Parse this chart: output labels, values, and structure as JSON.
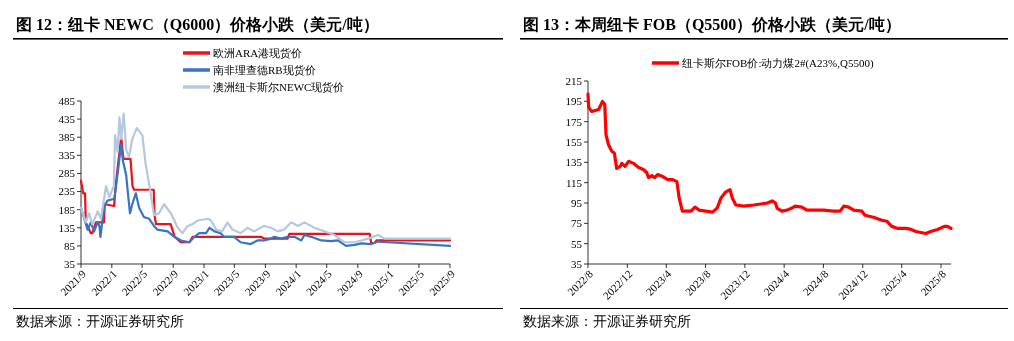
{
  "chart_data": [
    {
      "type": "line",
      "title": "图 12：纽卡 NEWC（Q6000）价格小跌（美元/吨）",
      "annotations": [
        "数据来源：开源证券研究所"
      ],
      "legend": "top",
      "grid": false,
      "marker": "none",
      "line_style": "solid",
      "xlim": [
        "2021-09-01",
        "2025-09-01"
      ],
      "xticks": [
        {
          "value": "2021-09",
          "label": "2021/9"
        },
        {
          "value": "2022-01",
          "label": "2022/1"
        },
        {
          "value": "2022-05",
          "label": "2022/5"
        },
        {
          "value": "2022-09",
          "label": "2022/9"
        },
        {
          "value": "2023-01",
          "label": "2023/1"
        },
        {
          "value": "2023-05",
          "label": "2023/5"
        },
        {
          "value": "2023-09",
          "label": "2023/9"
        },
        {
          "value": "2024-01",
          "label": "2024/1"
        },
        {
          "value": "2024-05",
          "label": "2024/5"
        },
        {
          "value": "2024-09",
          "label": "2024/9"
        },
        {
          "value": "2025-01",
          "label": "2025/1"
        },
        {
          "value": "2025-05",
          "label": "2025/5"
        },
        {
          "value": "2025-09",
          "label": "2025/9"
        }
      ],
      "ylim": [
        35,
        485
      ],
      "yticks": [
        35,
        85,
        135,
        185,
        235,
        285,
        335,
        385,
        435,
        485
      ],
      "series": [
        {
          "name": "欧洲ARA港现货价",
          "color": "#e8141b",
          "x": [
            "2021-09-01",
            "2021-09-10",
            "2021-09-17",
            "2021-09-20",
            "2021-10-10",
            "2021-10-16",
            "2021-10-30",
            "2021-12-01",
            "2021-12-04",
            "2022-01-10",
            "2022-01-16",
            "2022-02-07",
            "2022-02-16",
            "2022-03-16",
            "2022-03-24",
            "2022-03-30",
            "2022-06-16",
            "2022-06-19",
            "2022-06-25",
            "2022-08-22",
            "2022-09-07",
            "2022-10-01",
            "2022-11-04",
            "2022-11-17",
            "2023-08-14",
            "2023-08-28",
            "2023-11-28",
            "2023-12-05",
            "2024-10-18",
            "2024-10-24",
            "2024-11-07",
            "2024-11-14",
            "2025-09-01"
          ],
          "values": [
            265,
            230,
            230,
            150,
            120,
            120,
            150,
            150,
            200,
            195,
            250,
            385,
            325,
            325,
            250,
            240,
            240,
            170,
            145,
            145,
            110,
            95,
            95,
            110,
            110,
            105,
            105,
            118,
            118,
            93,
            93,
            100,
            100
          ]
        },
        {
          "name": "南非理查德RB现货价",
          "color": "#3a73c4",
          "x": [
            "2021-09-01",
            "2021-09-27",
            "2021-10-10",
            "2021-10-23",
            "2021-11-06",
            "2021-11-13",
            "2021-11-17",
            "2021-12-02",
            "2021-12-15",
            "2022-01-11",
            "2022-01-18",
            "2022-02-07",
            "2022-02-14",
            "2022-02-27",
            "2022-03-03",
            "2022-03-14",
            "2022-03-23",
            "2022-04-06",
            "2022-04-19",
            "2022-05-08",
            "2022-05-28",
            "2022-06-17",
            "2022-06-30",
            "2022-08-10",
            "2022-09-06",
            "2022-10-02",
            "2022-11-04",
            "2022-11-24",
            "2022-12-13",
            "2023-01-09",
            "2023-01-23",
            "2023-02-12",
            "2023-03-08",
            "2023-03-21",
            "2023-04-30",
            "2023-05-26",
            "2023-07-05",
            "2023-08-01",
            "2023-08-27",
            "2023-09-23",
            "2023-10-06",
            "2023-11-02",
            "2023-11-28",
            "2023-12-25",
            "2024-01-21",
            "2024-02-03",
            "2024-03-01",
            "2024-04-09",
            "2024-05-18",
            "2024-06-14",
            "2024-07-16",
            "2024-08-19",
            "2024-09-15",
            "2024-10-24",
            "2024-11-20",
            "2024-12-29",
            "2025-09-01"
          ],
          "values": [
            190,
            130,
            150,
            125,
            150,
            140,
            110,
            195,
            210,
            215,
            250,
            365,
            320,
            280,
            250,
            175,
            200,
            230,
            190,
            165,
            160,
            140,
            130,
            125,
            110,
            100,
            95,
            110,
            120,
            120,
            135,
            125,
            120,
            110,
            110,
            95,
            90,
            100,
            100,
            105,
            110,
            105,
            110,
            110,
            100,
            115,
            110,
            100,
            98,
            100,
            85,
            88,
            92,
            90,
            97,
            95,
            85
          ]
        },
        {
          "name": "澳洲纽卡斯尔NEWC现货价",
          "color": "#b4c8e0",
          "x": [
            "2021-09-01",
            "2021-09-20",
            "2021-10-03",
            "2021-10-16",
            "2021-11-06",
            "2021-11-19",
            "2021-12-09",
            "2021-12-22",
            "2022-01-09",
            "2022-01-14",
            "2022-01-24",
            "2022-01-31",
            "2022-02-07",
            "2022-02-17",
            "2022-02-27",
            "2022-03-10",
            "2022-03-23",
            "2022-04-10",
            "2022-05-02",
            "2022-05-15",
            "2022-06-04",
            "2022-06-17",
            "2022-07-07",
            "2022-07-27",
            "2022-08-23",
            "2022-09-19",
            "2022-10-08",
            "2022-10-28",
            "2022-11-17",
            "2022-12-07",
            "2023-01-16",
            "2023-01-29",
            "2023-02-18",
            "2023-03-14",
            "2023-04-04",
            "2023-04-24",
            "2023-05-26",
            "2023-06-22",
            "2023-07-18",
            "2023-08-27",
            "2023-09-23",
            "2023-10-19",
            "2023-11-15",
            "2023-12-12",
            "2024-01-08",
            "2024-02-03",
            "2024-03-13",
            "2024-04-22",
            "2024-06-01",
            "2024-07-10",
            "2024-08-19",
            "2024-09-15",
            "2024-10-11",
            "2024-11-20",
            "2024-12-16",
            "2025-09-01"
          ],
          "values": [
            190,
            150,
            175,
            145,
            180,
            160,
            250,
            220,
            250,
            390,
            345,
            440,
            380,
            450,
            350,
            330,
            380,
            410,
            390,
            310,
            230,
            170,
            175,
            200,
            175,
            135,
            120,
            140,
            145,
            155,
            160,
            155,
            130,
            125,
            150,
            130,
            120,
            135,
            125,
            140,
            135,
            125,
            130,
            150,
            140,
            150,
            135,
            125,
            115,
            95,
            95,
            100,
            105,
            115,
            105,
            105
          ]
        }
      ]
    },
    {
      "type": "line",
      "title": "图 13：本周纽卡 FOB（Q5500）价格小跌（美元/吨）",
      "annotations": [
        "数据来源：开源证券研究所"
      ],
      "legend": "top",
      "grid": false,
      "marker": "none",
      "line_style": "solid",
      "xlim": [
        "2022-08-01",
        "2025-09-01"
      ],
      "xticks": [
        {
          "value": "2022-08",
          "label": "2022/8"
        },
        {
          "value": "2022-12",
          "label": "2022/12"
        },
        {
          "value": "2023-04",
          "label": "2023/4"
        },
        {
          "value": "2023-08",
          "label": "2023/8"
        },
        {
          "value": "2023-12",
          "label": "2023/12"
        },
        {
          "value": "2024-04",
          "label": "2024/4"
        },
        {
          "value": "2024-08",
          "label": "2024/8"
        },
        {
          "value": "2024-12",
          "label": "2024/12"
        },
        {
          "value": "2025-04",
          "label": "2025/4"
        },
        {
          "value": "2025-08",
          "label": "2025/8"
        }
      ],
      "ylim": [
        35,
        215
      ],
      "yticks": [
        35,
        55,
        75,
        95,
        115,
        135,
        155,
        175,
        195,
        215
      ],
      "series": [
        {
          "name": "纽卡斯尔FOB价:动力煤2#(A23%,Q5500)",
          "color": "#ff0000",
          "x": [
            "2022-08-01",
            "2022-08-03",
            "2022-08-13",
            "2022-09-03",
            "2022-09-15",
            "2022-09-22",
            "2022-09-26",
            "2022-10-04",
            "2022-10-14",
            "2022-10-22",
            "2022-10-29",
            "2022-11-09",
            "2022-11-14",
            "2022-11-24",
            "2022-12-05",
            "2022-12-20",
            "2023-01-05",
            "2023-01-20",
            "2023-01-30",
            "2023-02-05",
            "2023-02-15",
            "2023-02-24",
            "2023-03-05",
            "2023-03-21",
            "2023-04-06",
            "2023-04-21",
            "2023-05-04",
            "2023-05-11",
            "2023-05-21",
            "2023-06-17",
            "2023-06-29",
            "2023-07-12",
            "2023-08-02",
            "2023-08-23",
            "2023-09-06",
            "2023-09-18",
            "2023-10-03",
            "2023-10-16",
            "2023-10-23",
            "2023-11-03",
            "2023-11-28",
            "2023-12-29",
            "2024-01-19",
            "2024-02-09",
            "2024-02-24",
            "2024-03-05",
            "2024-03-10",
            "2024-03-25",
            "2024-04-10",
            "2024-04-25",
            "2024-05-05",
            "2024-05-26",
            "2024-06-11",
            "2024-08-01",
            "2024-09-02",
            "2024-09-22",
            "2024-10-03",
            "2024-10-18",
            "2024-11-03",
            "2024-11-28",
            "2024-12-08",
            "2025-01-03",
            "2025-01-29",
            "2025-02-14",
            "2025-03-01",
            "2025-03-20",
            "2025-04-15",
            "2025-04-30",
            "2025-05-15",
            "2025-06-15",
            "2025-06-30",
            "2025-07-21",
            "2025-08-11",
            "2025-08-21",
            "2025-09-01"
          ],
          "values": [
            202,
            189,
            185,
            187,
            195,
            192,
            162,
            152,
            146,
            144,
            129,
            131,
            134,
            131,
            136,
            134,
            130,
            128,
            125,
            120,
            122,
            120,
            123,
            121,
            118,
            118,
            116,
            100,
            87,
            87,
            91,
            88,
            87,
            86,
            90,
            100,
            106,
            108,
            100,
            93,
            92,
            93,
            94,
            95,
            97,
            95,
            90,
            87,
            88,
            90,
            92,
            91,
            88,
            88,
            87,
            87,
            92,
            91,
            88,
            87,
            83,
            81,
            78,
            77,
            72,
            70,
            70,
            69,
            67,
            65,
            67,
            69,
            72,
            72,
            70
          ]
        }
      ]
    }
  ]
}
